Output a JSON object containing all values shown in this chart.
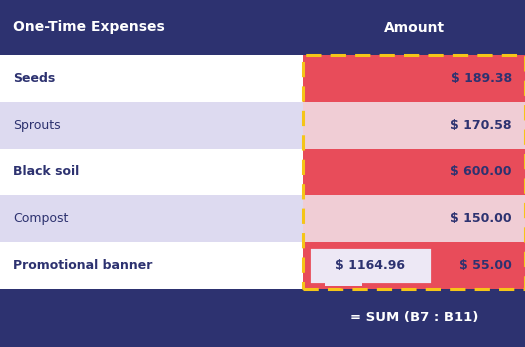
{
  "title_col1": "One-Time Expenses",
  "title_col2": "Amount",
  "header_bg": "#2d3270",
  "header_text_color": "#ffffff",
  "rows": [
    {
      "label": "Seeds",
      "amount": "$ 189.38",
      "label_bold": true,
      "row_bg": "#ffffff",
      "amount_bg": "#e84c5a"
    },
    {
      "label": "Sprouts",
      "amount": "$ 170.58",
      "label_bold": false,
      "row_bg": "#dddaf0",
      "amount_bg": "#f0cdd5"
    },
    {
      "label": "Black soil",
      "amount": "$ 600.00",
      "label_bold": true,
      "row_bg": "#ffffff",
      "amount_bg": "#e84c5a"
    },
    {
      "label": "Compost",
      "amount": "$ 150.00",
      "label_bold": false,
      "row_bg": "#dddaf0",
      "amount_bg": "#f0cdd5"
    },
    {
      "label": "Promotional banner",
      "amount": "$ 55.00",
      "label_bold": true,
      "row_bg": "#ffffff",
      "amount_bg": "#e84c5a"
    }
  ],
  "footer_bg": "#2d3270",
  "footer_text": "= SUM (B7 : B11)",
  "footer_text_color": "#ffffff",
  "sum_bubble_text": "$ 1164.96",
  "sum_bubble_bg": "#ede8f5",
  "sum_bubble_border": "#e84c5a",
  "dashed_border_color": "#f5c518",
  "col_split": 0.578,
  "dark_text": "#2d3270",
  "amount_text_red_color": "#2d3270",
  "amount_text_pink_color": "#2d3270",
  "seeds_amount_color": "#2d3270",
  "header_fontsize": 10,
  "row_fontsize": 9,
  "footer_fontsize": 9.5
}
